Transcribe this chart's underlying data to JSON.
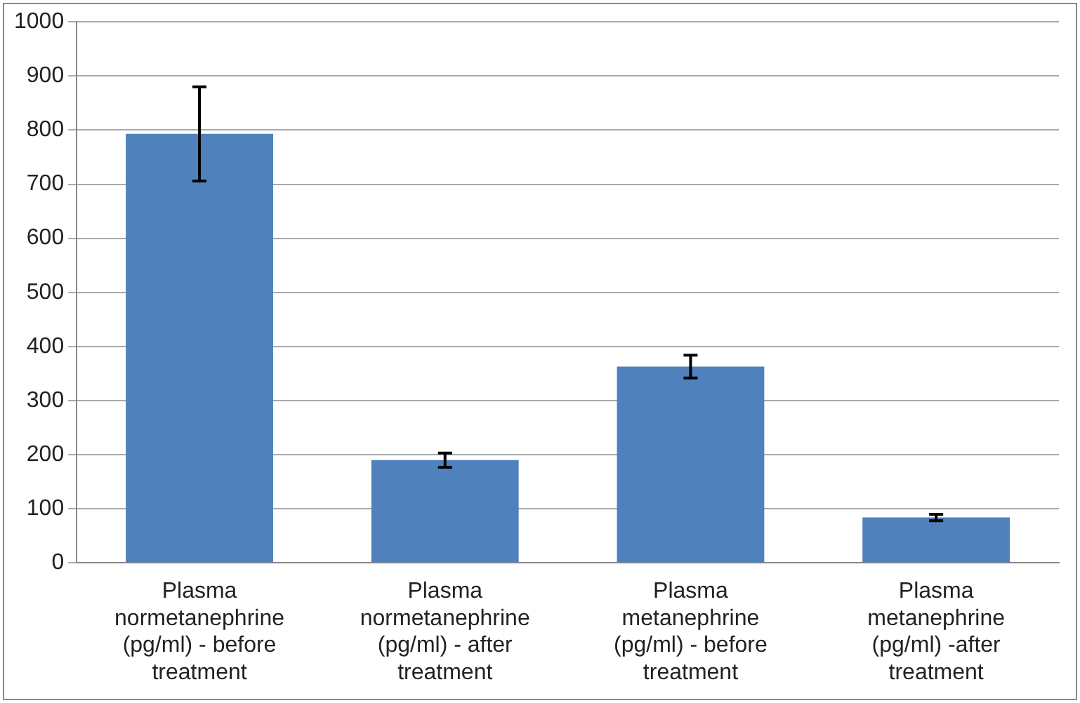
{
  "chart_data": {
    "type": "bar",
    "categories": [
      "Plasma normetanephrine (pg/ml) - before treatment",
      "Plasma normetanephrine (pg/ml) - after treatment",
      "Plasma metanephrine (pg/ml) - before treatment",
      "Plasma metanephrine (pg/ml) -after treatment"
    ],
    "values": [
      793,
      190,
      363,
      84
    ],
    "errors": [
      87,
      13,
      21,
      6
    ],
    "color": "#4f81bd",
    "ylim": [
      0,
      1000
    ],
    "yticks": [
      0,
      100,
      200,
      300,
      400,
      500,
      600,
      700,
      800,
      900,
      1000
    ],
    "grid": "y",
    "legend": false
  }
}
